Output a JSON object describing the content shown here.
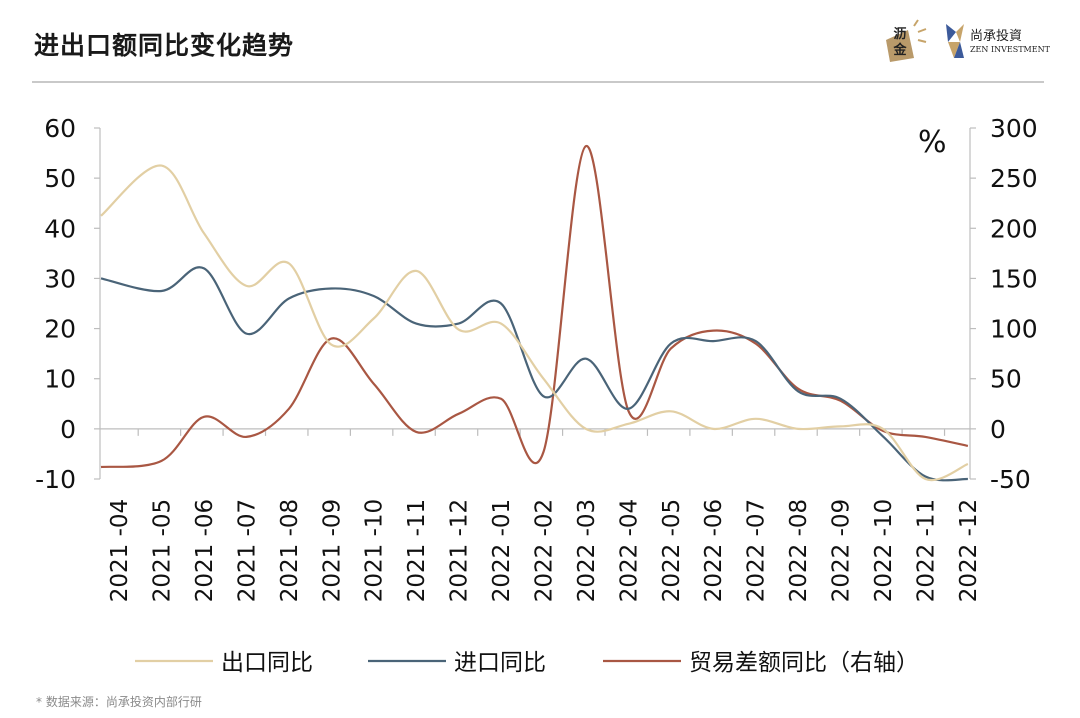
{
  "header": {
    "title": "进出口额同比变化趋势",
    "brand_logo_text": "沥金",
    "brand_name_cn": "尚承投資",
    "brand_name_en": "ZEN INVESTMENT"
  },
  "footer": {
    "source": "* 数据来源：尚承投资内部行研"
  },
  "chart_data": {
    "type": "line",
    "title": "进出口额同比变化趋势",
    "x": [
      "2021 -04",
      "2021 -05",
      "2021 -06",
      "2021 -07",
      "2021 -08",
      "2021 -09",
      "2021 -10",
      "2021 -11",
      "2021 -12",
      "2022 -01",
      "2022 -02",
      "2022 -03",
      "2022 -04",
      "2022 -05",
      "2022 -06",
      "2022 -07",
      "2022 -08",
      "2022 -09",
      "2022 -10",
      "2022 -11",
      "2022 -12"
    ],
    "y_left": {
      "ylim": [
        -10,
        60
      ],
      "ticks": [
        -10,
        0,
        10,
        20,
        30,
        40,
        50,
        60
      ]
    },
    "y_right": {
      "ylim": [
        -50,
        300
      ],
      "ticks": [
        -50,
        0,
        50,
        100,
        150,
        200,
        250,
        300
      ],
      "unit": "%"
    },
    "grid": false,
    "legend_position": "bottom",
    "series": [
      {
        "name": "出口同比",
        "axis": "left",
        "color": "#e2cfa4",
        "values": [
          42.5,
          52.5,
          39.0,
          28.5,
          33.0,
          16.8,
          22.0,
          31.5,
          19.8,
          21.0,
          10.0,
          0.0,
          1.0,
          3.5,
          0.0,
          2.0,
          0.0,
          0.5,
          0.0,
          -10.0,
          -7.0
        ]
      },
      {
        "name": "进口同比",
        "axis": "left",
        "color": "#4a6478",
        "values": [
          30.0,
          27.5,
          32.0,
          19.0,
          26.0,
          28.0,
          26.5,
          21.0,
          21.0,
          25.0,
          6.5,
          14.0,
          4.0,
          17.0,
          17.5,
          17.5,
          7.5,
          6.0,
          -1.5,
          -9.5,
          -10.0
        ]
      },
      {
        "name": "贸易差额同比（右轴）",
        "axis": "right",
        "color": "#a95743",
        "values": [
          -38,
          -32,
          12,
          -8,
          20,
          90,
          45,
          -3,
          15,
          30,
          -23,
          282,
          18,
          80,
          98,
          85,
          40,
          28,
          -2,
          -8,
          -17
        ]
      }
    ]
  }
}
